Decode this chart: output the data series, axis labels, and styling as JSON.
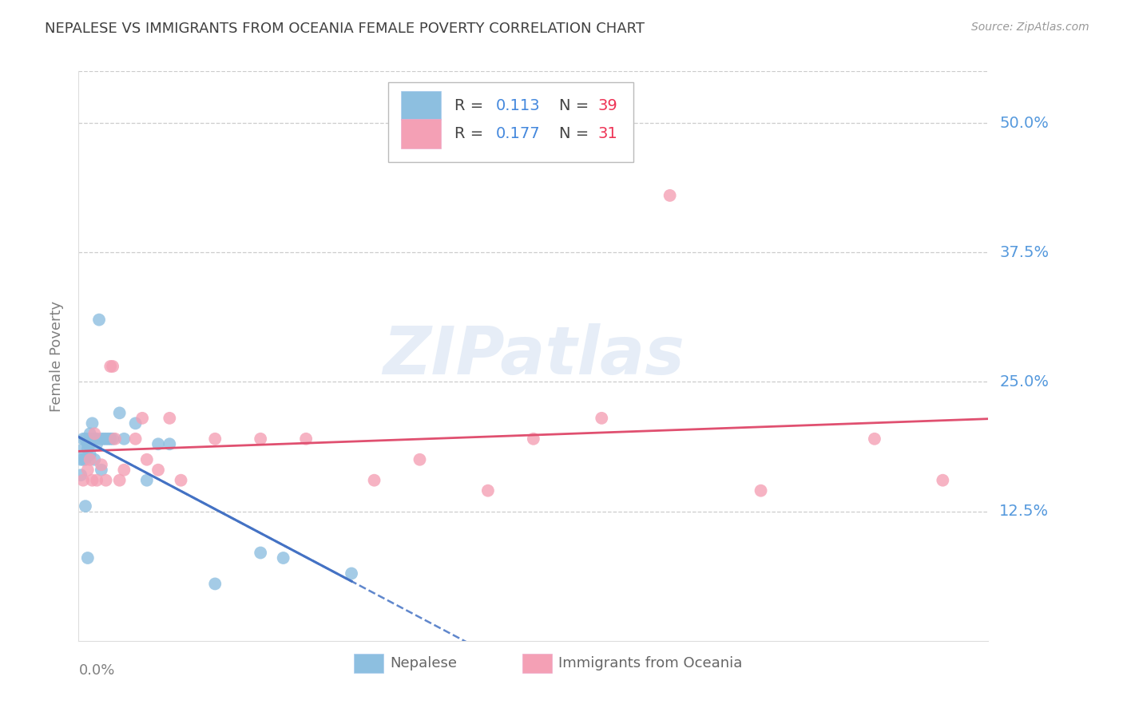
{
  "title": "NEPALESE VS IMMIGRANTS FROM OCEANIA FEMALE POVERTY CORRELATION CHART",
  "source": "Source: ZipAtlas.com",
  "ylabel": "Female Poverty",
  "ytick_labels": [
    "50.0%",
    "37.5%",
    "25.0%",
    "12.5%"
  ],
  "ytick_values": [
    0.5,
    0.375,
    0.25,
    0.125
  ],
  "xlim": [
    0.0,
    0.4
  ],
  "ylim": [
    0.0,
    0.55
  ],
  "nepalese_R": 0.113,
  "nepalese_N": 39,
  "oceania_R": 0.177,
  "oceania_N": 31,
  "nepalese_color": "#8DBFE0",
  "oceania_color": "#F4A0B5",
  "trendline_nepalese_color": "#4472C4",
  "trendline_oceania_color": "#E05070",
  "background_color": "#ffffff",
  "grid_color": "#cccccc",
  "title_color": "#404040",
  "watermark": "ZIPatlas",
  "nepalese_x": [
    0.001,
    0.001,
    0.002,
    0.002,
    0.002,
    0.003,
    0.003,
    0.003,
    0.004,
    0.004,
    0.004,
    0.005,
    0.005,
    0.005,
    0.005,
    0.006,
    0.006,
    0.007,
    0.007,
    0.008,
    0.008,
    0.009,
    0.01,
    0.01,
    0.011,
    0.012,
    0.013,
    0.014,
    0.015,
    0.018,
    0.02,
    0.025,
    0.03,
    0.035,
    0.04,
    0.06,
    0.08,
    0.09,
    0.12
  ],
  "nepalese_y": [
    0.175,
    0.16,
    0.195,
    0.185,
    0.175,
    0.195,
    0.175,
    0.13,
    0.19,
    0.185,
    0.08,
    0.2,
    0.195,
    0.19,
    0.18,
    0.21,
    0.195,
    0.195,
    0.175,
    0.195,
    0.19,
    0.31,
    0.195,
    0.165,
    0.195,
    0.195,
    0.195,
    0.195,
    0.195,
    0.22,
    0.195,
    0.21,
    0.155,
    0.19,
    0.19,
    0.055,
    0.085,
    0.08,
    0.065
  ],
  "oceania_x": [
    0.002,
    0.004,
    0.005,
    0.006,
    0.007,
    0.008,
    0.01,
    0.012,
    0.014,
    0.015,
    0.016,
    0.018,
    0.02,
    0.025,
    0.028,
    0.03,
    0.035,
    0.04,
    0.045,
    0.06,
    0.08,
    0.1,
    0.13,
    0.15,
    0.18,
    0.2,
    0.23,
    0.26,
    0.3,
    0.35,
    0.38
  ],
  "oceania_y": [
    0.155,
    0.165,
    0.175,
    0.155,
    0.2,
    0.155,
    0.17,
    0.155,
    0.265,
    0.265,
    0.195,
    0.155,
    0.165,
    0.195,
    0.215,
    0.175,
    0.165,
    0.215,
    0.155,
    0.195,
    0.195,
    0.195,
    0.155,
    0.175,
    0.145,
    0.195,
    0.215,
    0.43,
    0.145,
    0.195,
    0.155
  ]
}
